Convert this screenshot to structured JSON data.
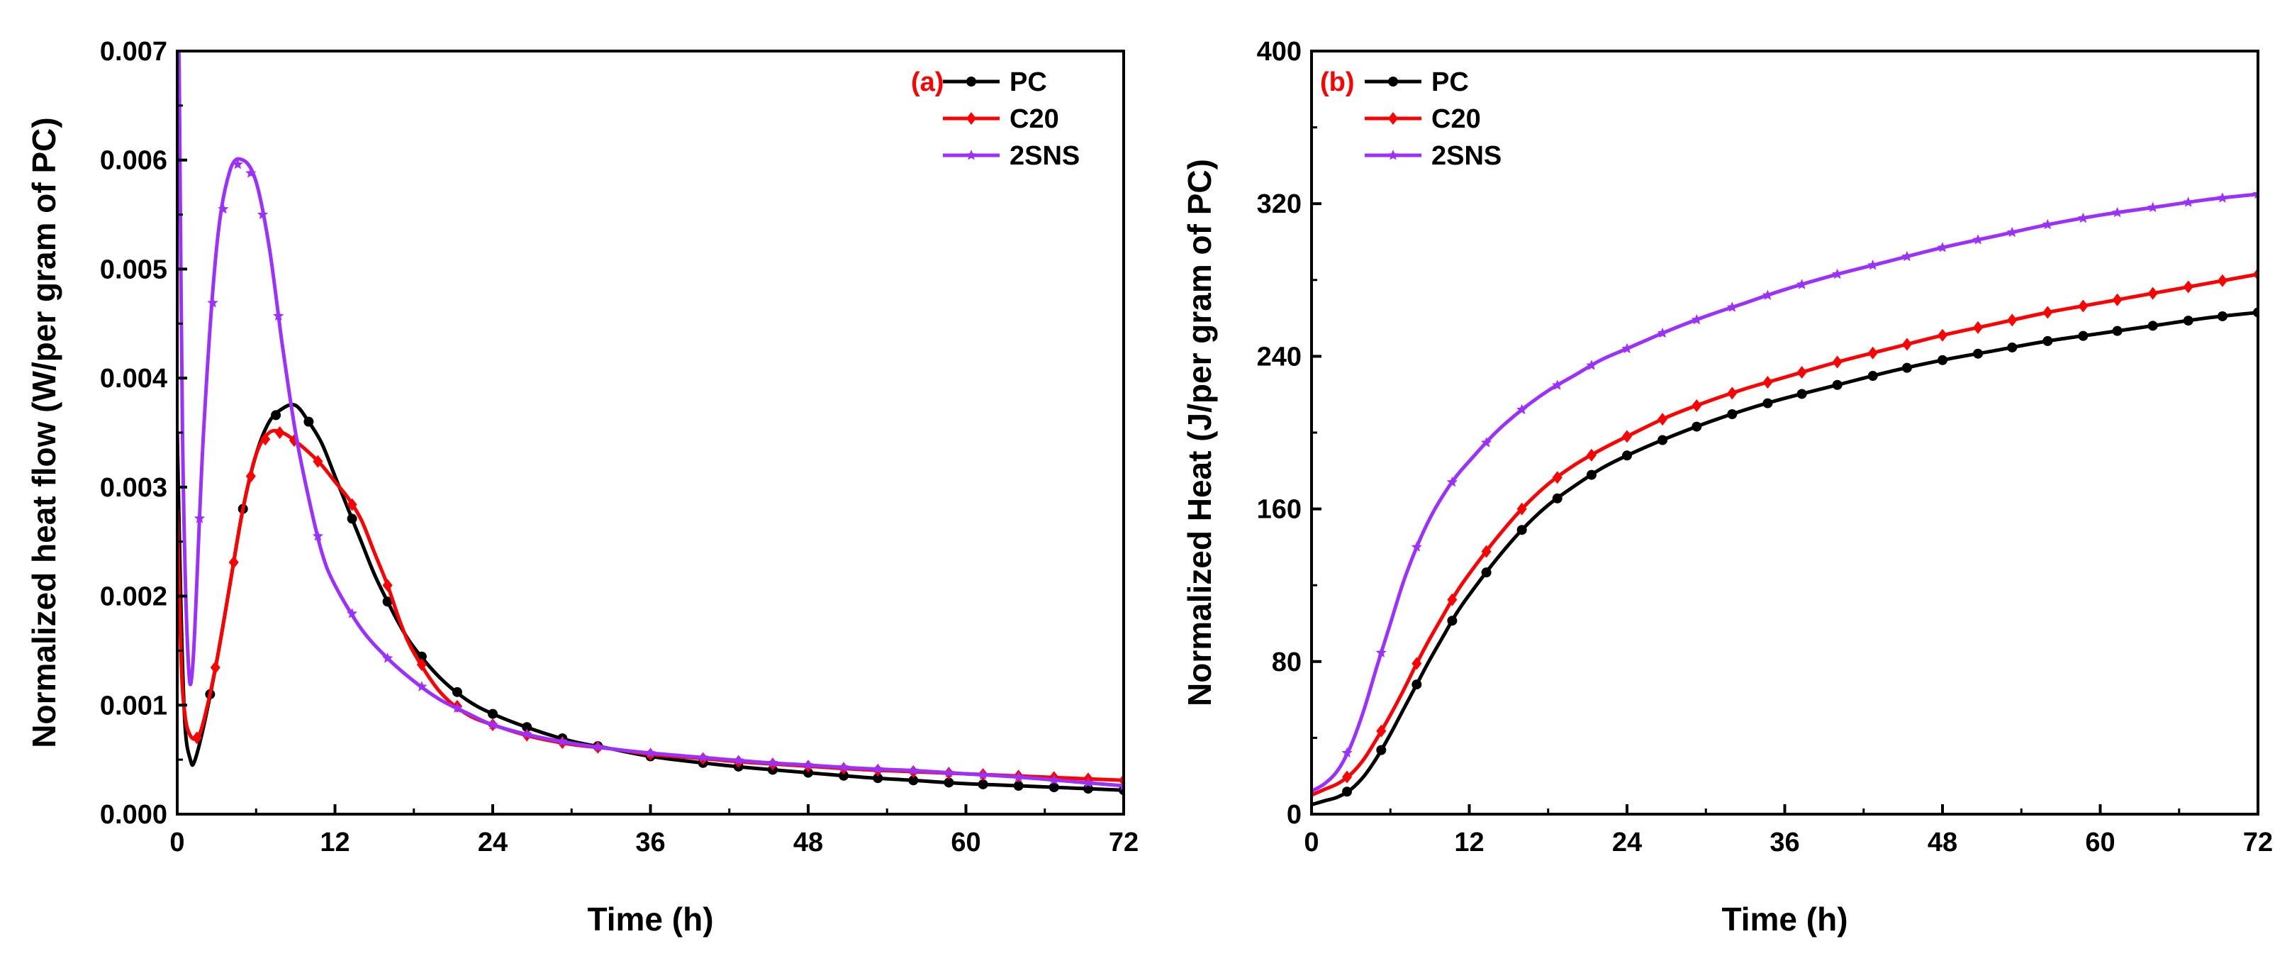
{
  "chart_data": [
    {
      "panel_label": "(a)",
      "type": "line",
      "xlabel": "Time (h)",
      "ylabel": "Normalized heat flow (W/per gram of PC)",
      "xlim": [
        0,
        72
      ],
      "ylim": [
        0,
        0.007
      ],
      "xticks": [
        0,
        12,
        24,
        36,
        48,
        60,
        72
      ],
      "yticks": [
        0,
        0.001,
        0.002,
        0.003,
        0.004,
        0.005,
        0.006,
        0.007
      ],
      "ytick_labels": [
        "0.000",
        "0.001",
        "0.002",
        "0.003",
        "0.004",
        "0.005",
        "0.006",
        "0.007"
      ],
      "legend_position": "top-right",
      "series": [
        {
          "name": "PC",
          "color": "#000000",
          "marker": "circle",
          "x": [
            0,
            0.3,
            0.6,
            1,
            1.3,
            2,
            3,
            4,
            5,
            6,
            7,
            8,
            9,
            10,
            11,
            12,
            13,
            14,
            15,
            16,
            17,
            18,
            20,
            22,
            24,
            27,
            30,
            33,
            36,
            40,
            44,
            48,
            52,
            56,
            60,
            64,
            68,
            72
          ],
          "y": [
            0.0035,
            0.0018,
            0.0008,
            0.0005,
            0.00048,
            0.0008,
            0.0014,
            0.0021,
            0.0028,
            0.0033,
            0.0036,
            0.00372,
            0.00375,
            0.0036,
            0.0034,
            0.0031,
            0.0028,
            0.0025,
            0.0022,
            0.00195,
            0.00172,
            0.00153,
            0.00125,
            0.00105,
            0.00092,
            0.00078,
            0.00067,
            0.0006,
            0.00053,
            0.00047,
            0.00042,
            0.00038,
            0.00034,
            0.00031,
            0.00028,
            0.00026,
            0.00024,
            0.00022
          ],
          "marker_x": [
            2.5,
            5,
            7.5,
            10,
            13.3,
            16,
            18.6,
            21.3,
            24,
            26.6,
            29.3,
            32,
            36,
            40,
            42.7,
            45.3,
            48,
            50.7,
            53.3,
            56,
            58.7,
            61.3,
            64,
            66.7,
            69.3,
            72
          ]
        },
        {
          "name": "C20",
          "color": "#ff0000",
          "marker": "diamond",
          "x": [
            0,
            0.3,
            0.6,
            1,
            1.5,
            2,
            3,
            4,
            5,
            6,
            7,
            8,
            9,
            10,
            11,
            12,
            13,
            14,
            15,
            16,
            17,
            18,
            20,
            22,
            24,
            27,
            30,
            33,
            36,
            40,
            44,
            48,
            52,
            56,
            60,
            64,
            68,
            72
          ],
          "y": [
            0.0028,
            0.0014,
            0.0009,
            0.00072,
            0.0007,
            0.00085,
            0.0014,
            0.0021,
            0.0028,
            0.0033,
            0.0035,
            0.0035,
            0.00342,
            0.00332,
            0.0032,
            0.00305,
            0.0029,
            0.0027,
            0.0024,
            0.0021,
            0.00175,
            0.00148,
            0.00112,
            0.00092,
            0.00082,
            0.00071,
            0.00064,
            0.0006,
            0.00055,
            0.00051,
            0.00047,
            0.00044,
            0.00041,
            0.00039,
            0.00037,
            0.00035,
            0.00033,
            0.00031
          ],
          "marker_x": [
            1.5,
            2.9,
            4.3,
            5.6,
            6.7,
            7.8,
            8.9,
            10.7,
            13.3,
            16,
            18.6,
            21.3,
            24,
            26.6,
            29.3,
            32,
            36,
            40,
            42.7,
            45.3,
            48,
            50.7,
            53.3,
            56,
            58.7,
            61.3,
            64,
            66.7,
            69.3,
            72
          ]
        },
        {
          "name": "2SNS",
          "color": "#9b30ff",
          "marker": "star",
          "x": [
            0,
            0.15,
            0.4,
            0.8,
            1.2,
            2,
            3,
            4,
            5,
            6,
            7,
            8,
            9,
            10,
            11,
            12,
            14,
            16,
            18,
            20,
            22,
            24,
            27,
            30,
            33,
            36,
            40,
            44,
            48,
            52,
            56,
            60,
            64,
            68,
            72
          ],
          "y": [
            0.007,
            0.0068,
            0.0035,
            0.0015,
            0.0014,
            0.0035,
            0.0052,
            0.0059,
            0.006,
            0.0058,
            0.0052,
            0.0043,
            0.0035,
            0.0029,
            0.0024,
            0.0021,
            0.0017,
            0.00143,
            0.00122,
            0.00105,
            0.00093,
            0.00082,
            0.00072,
            0.00065,
            0.0006,
            0.00056,
            0.00052,
            0.00048,
            0.00045,
            0.00042,
            0.0004,
            0.00037,
            0.00034,
            0.0003,
            0.00026
          ],
          "marker_x": [
            1.7,
            2.7,
            3.5,
            4.6,
            5.6,
            6.5,
            7.7,
            10.7,
            13.3,
            16,
            18.6,
            21.3,
            24,
            26.6,
            29.3,
            32,
            36,
            40,
            42.7,
            45.3,
            48,
            50.7,
            53.3,
            56,
            58.7,
            61.3,
            64,
            66.7,
            69.3,
            72
          ]
        }
      ]
    },
    {
      "panel_label": "(b)",
      "type": "line",
      "xlabel": "Time (h)",
      "ylabel": "Normalized Heat (J/per gram of PC)",
      "xlim": [
        0,
        72
      ],
      "ylim": [
        0,
        400
      ],
      "xticks": [
        0,
        12,
        24,
        36,
        48,
        60,
        72
      ],
      "yticks": [
        0,
        80,
        160,
        240,
        320,
        400
      ],
      "ytick_labels": [
        "0",
        "80",
        "160",
        "240",
        "320",
        "400"
      ],
      "legend_position": "top-left",
      "series": [
        {
          "name": "PC",
          "color": "#000000",
          "marker": "circle",
          "x": [
            0,
            1,
            2,
            3,
            4,
            5,
            6,
            7,
            8,
            9,
            10,
            11,
            12,
            14,
            16,
            18,
            20,
            22,
            24,
            27,
            30,
            33,
            36,
            40,
            44,
            48,
            52,
            56,
            60,
            64,
            68,
            72
          ],
          "y": [
            5,
            7,
            9,
            13,
            20,
            30,
            42,
            55,
            68,
            81,
            93,
            105,
            115,
            133,
            149,
            162,
            172,
            181,
            188,
            197,
            205,
            212,
            218,
            225,
            232,
            238,
            243,
            248,
            252,
            256,
            260,
            263
          ],
          "marker_x": [
            2.7,
            5.3,
            8,
            10.7,
            13.3,
            16,
            18.7,
            21.3,
            24,
            26.7,
            29.3,
            32,
            34.7,
            37.3,
            40,
            42.7,
            45.3,
            48,
            50.7,
            53.3,
            56,
            58.7,
            61.3,
            64,
            66.7,
            69.3,
            72
          ]
        },
        {
          "name": "C20",
          "color": "#ff0000",
          "marker": "diamond",
          "x": [
            0,
            1,
            2,
            3,
            4,
            5,
            6,
            7,
            8,
            9,
            10,
            11,
            12,
            14,
            16,
            18,
            20,
            22,
            24,
            27,
            30,
            33,
            36,
            40,
            44,
            48,
            52,
            56,
            60,
            64,
            68,
            72
          ],
          "y": [
            10,
            13,
            16,
            21,
            29,
            40,
            52,
            65,
            79,
            92,
            104,
            116,
            126,
            144,
            160,
            173,
            183,
            191,
            198,
            208,
            216,
            223,
            229,
            237,
            244,
            251,
            257,
            263,
            268,
            273,
            278,
            283
          ],
          "marker_x": [
            2.7,
            5.3,
            8,
            10.7,
            13.3,
            16,
            18.7,
            21.3,
            24,
            26.7,
            29.3,
            32,
            34.7,
            37.3,
            40,
            42.7,
            45.3,
            48,
            50.7,
            53.3,
            56,
            58.7,
            61.3,
            64,
            66.7,
            69.3,
            72
          ]
        },
        {
          "name": "2SNS",
          "color": "#9b30ff",
          "marker": "star",
          "x": [
            0,
            1,
            2,
            3,
            4,
            5,
            6,
            7,
            8,
            9,
            10,
            11,
            12,
            14,
            16,
            18,
            20,
            22,
            24,
            27,
            30,
            33,
            36,
            40,
            44,
            48,
            52,
            56,
            60,
            64,
            68,
            72
          ],
          "y": [
            12,
            16,
            23,
            36,
            55,
            78,
            100,
            122,
            140,
            155,
            167,
            177,
            185,
            200,
            212,
            222,
            230,
            238,
            244,
            253,
            261,
            268,
            275,
            283,
            290,
            297,
            303,
            309,
            314,
            318,
            322,
            325
          ],
          "marker_x": [
            2.7,
            5.3,
            8,
            10.7,
            13.3,
            16,
            18.7,
            21.3,
            24,
            26.7,
            29.3,
            32,
            34.7,
            37.3,
            40,
            42.7,
            45.3,
            48,
            50.7,
            53.3,
            56,
            58.7,
            61.3,
            64,
            66.7,
            69.3,
            72
          ]
        }
      ]
    }
  ]
}
